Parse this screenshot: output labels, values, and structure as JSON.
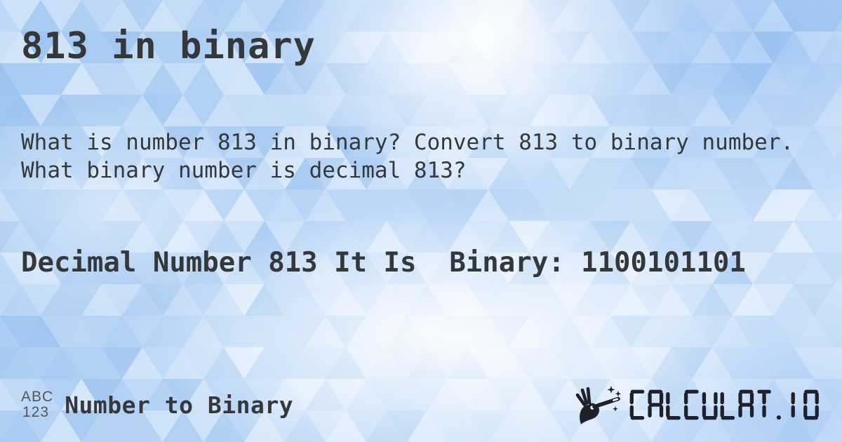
{
  "page": {
    "title": "813 in binary",
    "description_lines": [
      "What is number 813 in binary? Convert 813 to binary number.",
      "What binary number is decimal 813?"
    ]
  },
  "result": {
    "prefix": "Decimal Number 813 It Is",
    "binary_label": "Binary:",
    "binary_value": "1100101101"
  },
  "footer": {
    "icon_line1": "ABC",
    "icon_line2": "123",
    "category_label": "Number to Binary",
    "brand": "CALCULAT.IO"
  },
  "colors": {
    "text": "#34383b",
    "brand": "#20202b",
    "background_base": "#b3d2f5",
    "triangle_white": "#ffffff",
    "triangle_blue": "#7fb0e8"
  }
}
